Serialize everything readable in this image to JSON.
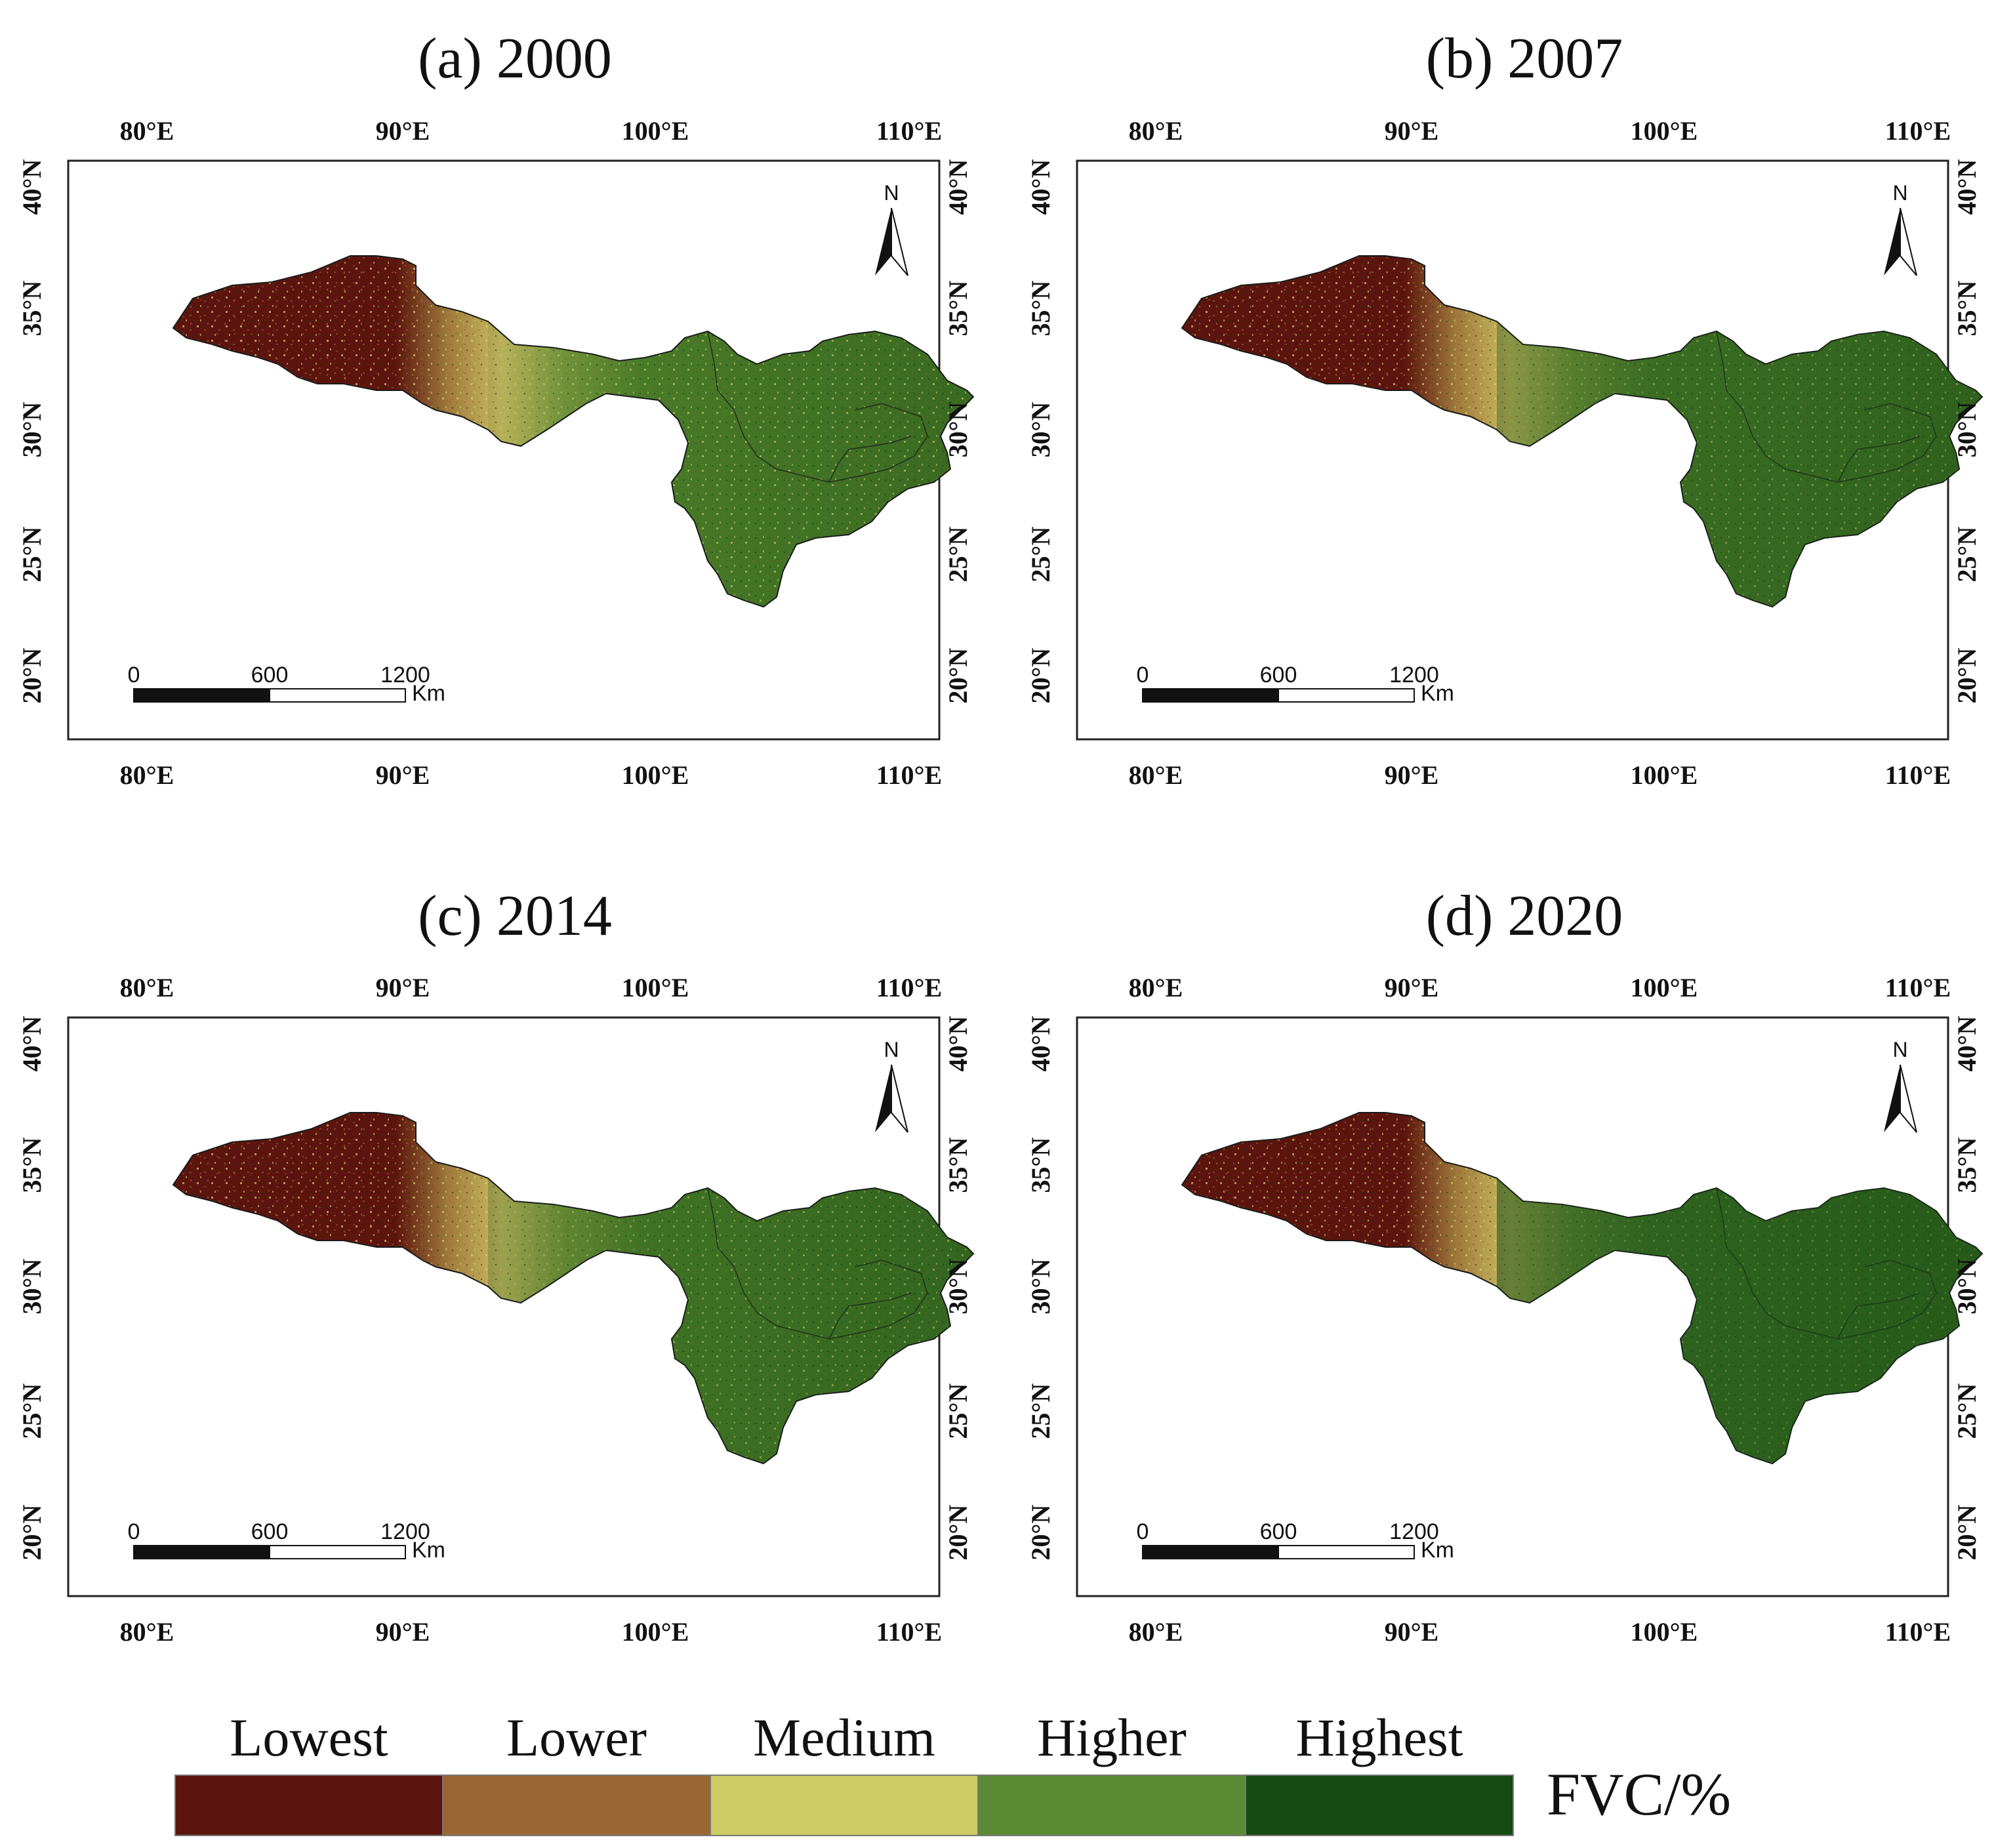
{
  "panels": [
    {
      "title": "(a) 2000",
      "green_mix": 0.1
    },
    {
      "title": "(b) 2007",
      "green_mix": 0.35
    },
    {
      "title": "(c) 2014",
      "green_mix": 0.25
    },
    {
      "title": "(d) 2020",
      "green_mix": 0.55
    }
  ],
  "axes": {
    "lon_labels": [
      "80°E",
      "90°E",
      "100°E",
      "110°E"
    ],
    "lat_labels": [
      "40°N",
      "35°N",
      "30°N",
      "25°N",
      "20°N"
    ]
  },
  "north_arrow": {
    "label": "N"
  },
  "scale_bar": {
    "labels": [
      "0",
      "600",
      "1200"
    ],
    "unit": "Km"
  },
  "legend": {
    "title": "FVC/%",
    "classes": [
      {
        "label": "Lowest",
        "color": "#5c150e"
      },
      {
        "label": "Lower",
        "color": "#9a6633"
      },
      {
        "label": "Medium",
        "color": "#cfcc66"
      },
      {
        "label": "Higher",
        "color": "#5c8a34"
      },
      {
        "label": "Highest",
        "color": "#144a14"
      }
    ]
  },
  "colors": {
    "west_region": "#5c150e",
    "transition_region": "#c3b45a",
    "east_region": "#3f6f23",
    "boundary": "#1a1a1a"
  }
}
